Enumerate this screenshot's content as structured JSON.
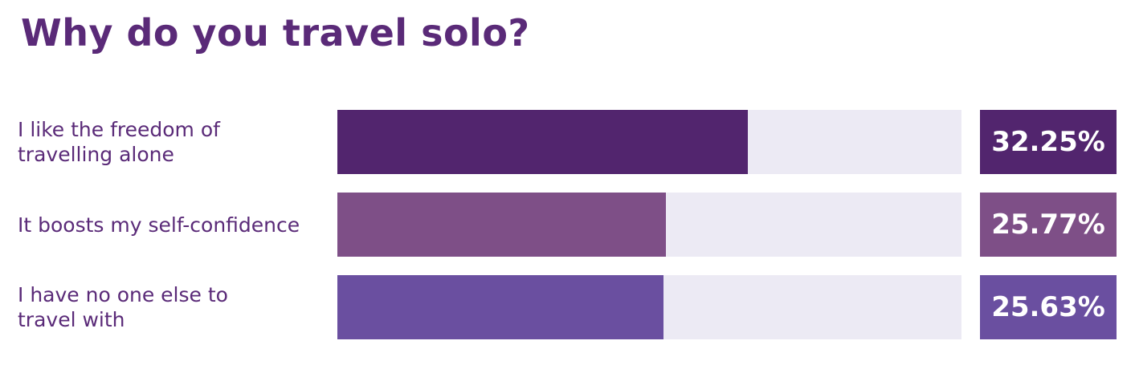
{
  "chart_data": {
    "type": "bar",
    "orientation": "horizontal",
    "title": "Why do you travel solo?",
    "categories": [
      "I like the freedom of\ntravelling alone",
      "It boosts my self-confidence",
      "I have no one else to\ntravel with"
    ],
    "values": [
      32.25,
      25.77,
      25.63
    ],
    "value_labels": [
      "32.25%",
      "25.77%",
      "25.63%"
    ],
    "colors": [
      "#52256e",
      "#7e4f87",
      "#6a4fa0"
    ],
    "xlim": [
      0,
      49
    ]
  }
}
